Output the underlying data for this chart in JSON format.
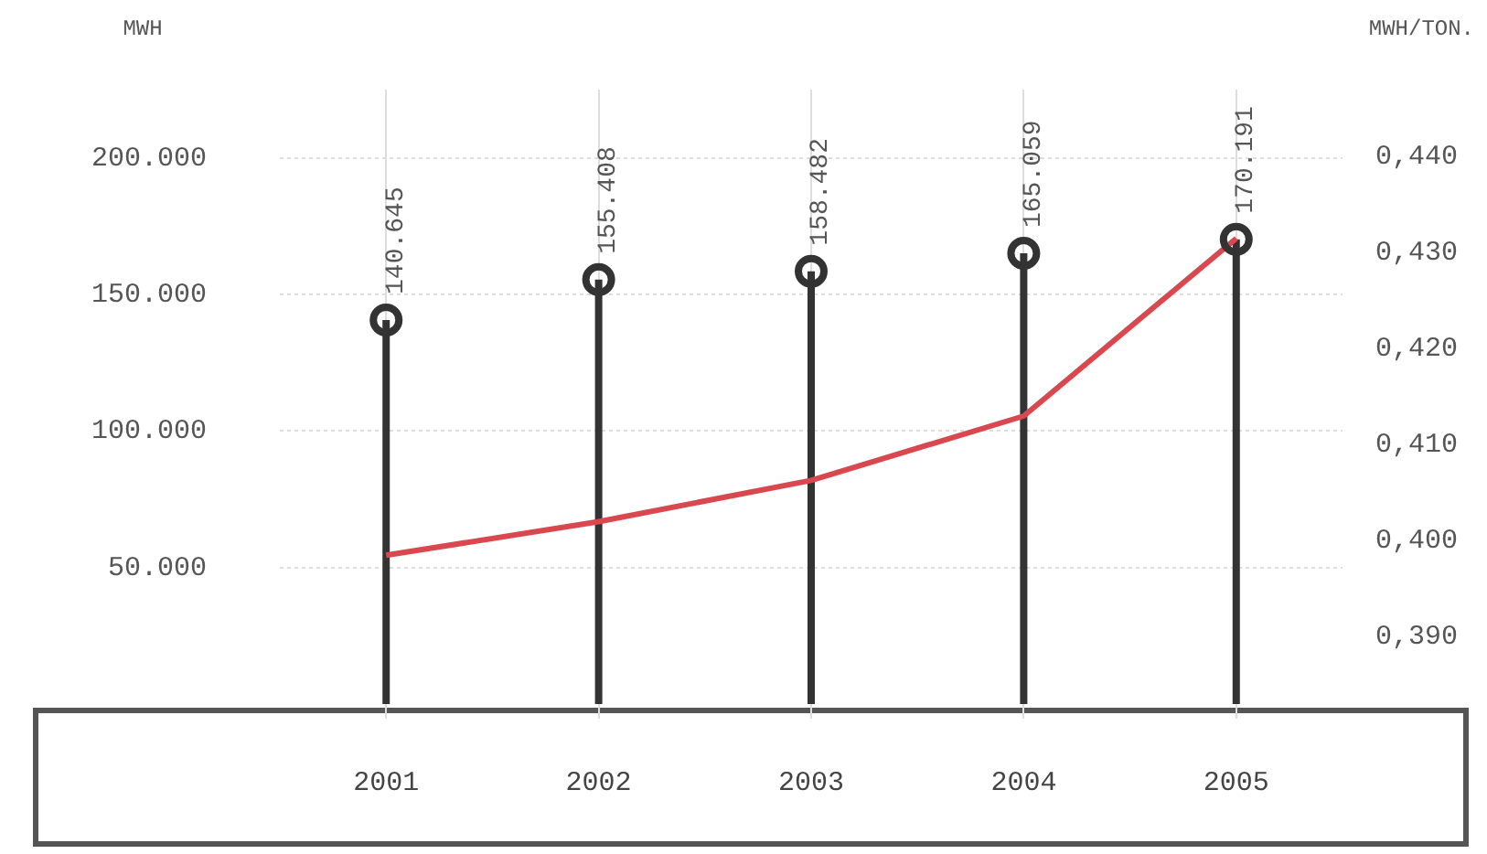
{
  "chart_data": {
    "type": "lollipop",
    "ylabel": "MWH",
    "y2label": "MWH/TON.",
    "categories": [
      "2001",
      "2002",
      "2003",
      "2004",
      "2005"
    ],
    "series": [
      {
        "color": "#333333",
        "marker": "circle",
        "values": [
          140645,
          155408,
          158482,
          165059,
          170191
        ],
        "value_labels": [
          "140.645",
          "155.408",
          "158.482",
          "165.059",
          "170.191"
        ]
      },
      {
        "type": "line",
        "axis": "y2",
        "marker": "none",
        "color": "#d9484f",
        "values": [
          0.3985,
          0.402,
          0.4063,
          0.413,
          0.4315
        ]
      }
    ],
    "ylim": [
      0,
      225000
    ],
    "yticks": [
      {
        "value": 50000,
        "label": "50.000"
      },
      {
        "value": 100000,
        "label": "100.000"
      },
      {
        "value": 150000,
        "label": "150.000"
      },
      {
        "value": 200000,
        "label": "200.000"
      }
    ],
    "y2lim": [
      0.383,
      0.447
    ],
    "y2ticks": [
      {
        "value": 0.39,
        "label": "0,390"
      },
      {
        "value": 0.4,
        "label": "0,400"
      },
      {
        "value": 0.41,
        "label": "0,410"
      },
      {
        "value": 0.42,
        "label": "0,420"
      },
      {
        "value": 0.43,
        "label": "0,430"
      },
      {
        "value": 0.44,
        "label": "0,440"
      }
    ],
    "grid": true,
    "legend": false,
    "line_style": "solid"
  }
}
